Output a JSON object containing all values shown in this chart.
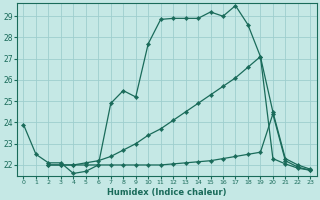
{
  "xlabel": "Humidex (Indice chaleur)",
  "bg_color": "#c5e8e5",
  "grid_color": "#9ecece",
  "line_color": "#1a6b5a",
  "xlim": [
    -0.5,
    23.5
  ],
  "ylim": [
    21.5,
    29.6
  ],
  "xticks": [
    0,
    1,
    2,
    3,
    4,
    5,
    6,
    7,
    8,
    9,
    10,
    11,
    12,
    13,
    14,
    15,
    16,
    17,
    18,
    19,
    20,
    21,
    22,
    23
  ],
  "yticks": [
    22,
    23,
    24,
    25,
    26,
    27,
    28,
    29
  ],
  "line1_x": [
    0,
    1,
    2,
    3,
    4,
    5,
    6,
    7,
    8,
    9,
    10,
    11,
    12,
    13,
    14,
    15,
    16,
    17,
    18,
    19,
    20,
    21,
    22,
    23
  ],
  "line1_y": [
    23.9,
    22.5,
    22.1,
    22.1,
    21.6,
    21.7,
    22.0,
    24.9,
    25.5,
    25.2,
    27.7,
    28.85,
    28.9,
    28.9,
    28.9,
    29.2,
    29.0,
    29.5,
    28.6,
    27.1,
    22.3,
    22.05,
    21.85,
    21.75
  ],
  "line2_x": [
    2,
    3,
    4,
    5,
    6,
    7,
    8,
    9,
    10,
    11,
    12,
    13,
    14,
    15,
    16,
    17,
    18,
    19,
    20,
    21,
    22,
    23
  ],
  "line2_y": [
    22.0,
    22.0,
    22.0,
    22.1,
    22.2,
    22.4,
    22.7,
    23.0,
    23.4,
    23.7,
    24.1,
    24.5,
    24.9,
    25.3,
    25.7,
    26.1,
    26.6,
    27.1,
    24.5,
    22.3,
    22.0,
    21.8
  ],
  "line3_x": [
    2,
    3,
    4,
    5,
    6,
    7,
    8,
    9,
    10,
    11,
    12,
    13,
    14,
    15,
    16,
    17,
    18,
    19,
    20,
    21,
    22,
    23
  ],
  "line3_y": [
    22.0,
    22.0,
    22.0,
    22.0,
    22.0,
    22.0,
    22.0,
    22.0,
    22.0,
    22.0,
    22.05,
    22.1,
    22.15,
    22.2,
    22.3,
    22.4,
    22.5,
    22.6,
    24.4,
    22.2,
    21.9,
    21.75
  ],
  "markersize": 2.2,
  "linewidth": 0.9
}
